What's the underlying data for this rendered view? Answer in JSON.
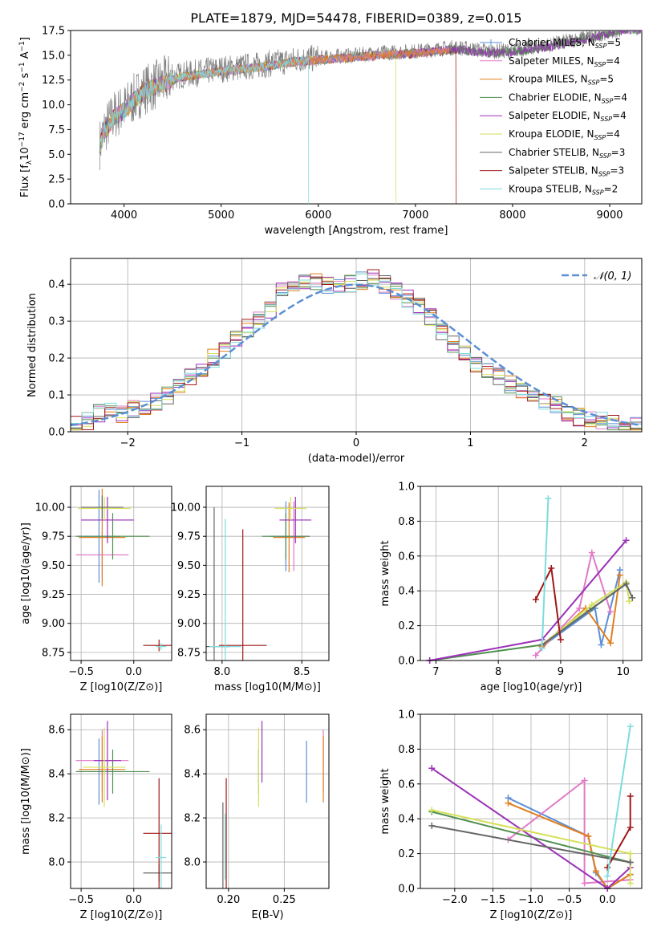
{
  "figure": {
    "title": "PLATE=1879, MJD=54478, FIBERID=0389, z=0.015"
  },
  "colors": {
    "Chabrier MILES": "#5b8fd6",
    "Salpeter MILES": "#e07ac8",
    "Kroupa MILES": "#e07f1f",
    "Chabrier ELODIE": "#4f8f4f",
    "Salpeter ELODIE": "#9b30b8",
    "Kroupa ELODIE": "#d6e05a",
    "Chabrier STELIB": "#666666",
    "Salpeter STELIB": "#a01818",
    "Kroupa STELIB": "#7fdcdc",
    "gaussian": "#5b8fd6"
  },
  "chart_data": [
    {
      "id": "spectrum",
      "type": "line",
      "title": "PLATE=1879, MJD=54478, FIBERID=0389, z=0.015",
      "xlabel": "wavelength [Angstrom, rest frame]",
      "ylabel": "Flux [f_λ10^-17 erg cm^-2 s^-1 A^-1]",
      "xlim": [
        3450,
        9330
      ],
      "ylim": [
        0,
        17.5
      ],
      "xticks": [
        "4000",
        "5000",
        "6000",
        "7000",
        "8000",
        "9000"
      ],
      "yticks": [
        "0.0",
        "2.5",
        "5.0",
        "7.5",
        "10.0",
        "12.5",
        "15.0",
        "17.5"
      ],
      "legend_position": "right",
      "legend": [
        {
          "name": "Chabrier MILES",
          "nssp": "5"
        },
        {
          "name": "Salpeter MILES",
          "nssp": "4"
        },
        {
          "name": "Kroupa MILES",
          "nssp": "5"
        },
        {
          "name": "Chabrier ELODIE",
          "nssp": "4"
        },
        {
          "name": "Salpeter ELODIE",
          "nssp": "4"
        },
        {
          "name": "Kroupa ELODIE",
          "nssp": "4"
        },
        {
          "name": "Chabrier STELIB",
          "nssp": "3"
        },
        {
          "name": "Salpeter STELIB",
          "nssp": "3"
        },
        {
          "name": "Kroupa STELIB",
          "nssp": "2"
        }
      ],
      "data_envelope": {
        "x": [
          3750,
          3800,
          3900,
          4000,
          4100,
          4200,
          4300,
          4400,
          4500,
          4600,
          4800,
          5000,
          5200,
          5400,
          5600,
          5800,
          6000,
          6200,
          6400,
          6600,
          6800,
          7000,
          7200,
          7400,
          7600,
          7800,
          8000,
          8200,
          8400,
          8600,
          8800,
          9000,
          9200
        ],
        "y": [
          6.0,
          7.5,
          9.0,
          9.6,
          10.6,
          11.5,
          11.9,
          12.3,
          12.8,
          13.0,
          13.3,
          13.6,
          13.8,
          14.0,
          14.3,
          14.6,
          14.7,
          14.9,
          15.0,
          15.2,
          15.3,
          15.4,
          15.6,
          15.8,
          15.6,
          15.4,
          15.5,
          15.8,
          16.1,
          16.5,
          16.9,
          17.4,
          17.8
        ]
      },
      "model_cutoffs": [
        {
          "series": "Kroupa STELIB",
          "x_end": 5900
        },
        {
          "series": "Kroupa ELODIE",
          "x_end": 6800
        },
        {
          "series": "Salpeter STELIB",
          "x_end": 7420
        }
      ]
    },
    {
      "id": "residuals",
      "type": "line",
      "xlabel": "(data-model)/error",
      "ylabel": "Normed distribution",
      "xlim": [
        -2.5,
        2.5
      ],
      "ylim": [
        0,
        0.47
      ],
      "xticks": [
        "−2",
        "−1",
        "0",
        "1",
        "2"
      ],
      "yticks": [
        "0.0",
        "0.1",
        "0.2",
        "0.3",
        "0.4"
      ],
      "legend_position": "top-right",
      "legend": [
        {
          "name": "𝒩(0, 1)"
        }
      ],
      "hist_bin_edges_start": -2.5,
      "hist_bin_width": 0.1,
      "hist_values": [
        0.02,
        0.03,
        0.05,
        0.06,
        0.05,
        0.06,
        0.07,
        0.08,
        0.1,
        0.12,
        0.15,
        0.17,
        0.2,
        0.22,
        0.25,
        0.28,
        0.3,
        0.33,
        0.38,
        0.4,
        0.4,
        0.41,
        0.4,
        0.39,
        0.4,
        0.41,
        0.42,
        0.4,
        0.38,
        0.36,
        0.34,
        0.31,
        0.27,
        0.24,
        0.21,
        0.18,
        0.17,
        0.15,
        0.13,
        0.11,
        0.09,
        0.08,
        0.07,
        0.05,
        0.04,
        0.03,
        0.03,
        0.02,
        0.02,
        0.02
      ]
    },
    {
      "id": "age_vs_Z",
      "type": "scatter",
      "xlabel": "Z [log10(Z/Z⊙)]",
      "ylabel": "age  [log10(age/yr)]",
      "xlim": [
        -0.6,
        0.36
      ],
      "ylim": [
        8.68,
        10.18
      ],
      "xticks": [
        {
          "v": -0.5,
          "t": "−0.5"
        },
        {
          "v": 0.0,
          "t": "0.0"
        }
      ],
      "yticks": [
        {
          "v": 8.75,
          "t": "8.75"
        },
        {
          "v": 9.0,
          "t": "9.00"
        },
        {
          "v": 9.25,
          "t": "9.25"
        },
        {
          "v": 9.5,
          "t": "9.50"
        },
        {
          "v": 9.75,
          "t": "9.75"
        },
        {
          "v": 10.0,
          "t": "10.00"
        }
      ],
      "points": [
        {
          "series": "Chabrier MILES",
          "x": -0.33,
          "y": 9.75,
          "xerr": 0.2,
          "yerr": 0.4
        },
        {
          "series": "Salpeter MILES",
          "x": -0.3,
          "y": 9.59,
          "xerr": 0.25,
          "yerr": 0.2
        },
        {
          "series": "Kroupa MILES",
          "x": -0.3,
          "y": 9.74,
          "xerr": 0.22,
          "yerr": 0.42
        },
        {
          "series": "Chabrier ELODIE",
          "x": -0.2,
          "y": 9.75,
          "xerr": 0.35,
          "yerr": 0.2
        },
        {
          "series": "Salpeter ELODIE",
          "x": -0.25,
          "y": 9.89,
          "xerr": 0.25,
          "yerr": 0.2
        },
        {
          "series": "Kroupa ELODIE",
          "x": -0.28,
          "y": 9.99,
          "xerr": 0.25,
          "yerr": 0.1
        },
        {
          "series": "Chabrier STELIB",
          "x": -0.3,
          "y": 10.0,
          "xerr": 0.2,
          "yerr": 0.1
        },
        {
          "series": "Salpeter STELIB",
          "x": 0.24,
          "y": 8.81,
          "xerr": 0.15,
          "yerr": 0.05
        },
        {
          "series": "Kroupa STELIB",
          "x": 0.26,
          "y": 8.8,
          "xerr": 0.05,
          "yerr": 0.03
        }
      ]
    },
    {
      "id": "age_vs_mass",
      "type": "scatter",
      "xlabel": "mass [log10(M/M⊙)]",
      "ylabel": "",
      "xlim": [
        7.9,
        8.67
      ],
      "ylim": [
        8.68,
        10.18
      ],
      "xticks": [
        {
          "v": 8.0,
          "t": "8.0"
        },
        {
          "v": 8.5,
          "t": "8.5"
        }
      ],
      "yticks": [
        {
          "v": 8.75,
          "t": "8.75"
        },
        {
          "v": 9.0,
          "t": "9.00"
        },
        {
          "v": 9.25,
          "t": "9.25"
        },
        {
          "v": 9.5,
          "t": "9.50"
        },
        {
          "v": 9.75,
          "t": "9.75"
        },
        {
          "v": 10.0,
          "t": "10.00"
        }
      ],
      "points": [
        {
          "series": "Chabrier MILES",
          "x": 8.4,
          "y": 9.75,
          "xerr": 0.1,
          "yerr": 0.3
        },
        {
          "series": "Salpeter MILES",
          "x": 8.45,
          "y": 9.75,
          "xerr": 0.1,
          "yerr": 0.3
        },
        {
          "series": "Kroupa MILES",
          "x": 8.42,
          "y": 9.74,
          "xerr": 0.1,
          "yerr": 0.3
        },
        {
          "series": "Chabrier ELODIE",
          "x": 8.4,
          "y": 9.75,
          "xerr": 0.15,
          "yerr": 0.2
        },
        {
          "series": "Salpeter ELODIE",
          "x": 8.46,
          "y": 9.89,
          "xerr": 0.1,
          "yerr": 0.2
        },
        {
          "series": "Kroupa ELODIE",
          "x": 8.43,
          "y": 9.99,
          "xerr": 0.1,
          "yerr": 0.1
        },
        {
          "series": "Chabrier STELIB",
          "x": 7.95,
          "y": 8.8,
          "xerr": 0.1,
          "yerr": 1.2
        },
        {
          "series": "Salpeter STELIB",
          "x": 8.13,
          "y": 8.81,
          "xerr": 0.15,
          "yerr": 1.0
        },
        {
          "series": "Kroupa STELIB",
          "x": 8.02,
          "y": 8.8,
          "xerr": 0.1,
          "yerr": 1.1
        }
      ]
    },
    {
      "id": "weight_vs_age",
      "type": "line",
      "xlabel": "age  [log10(age/yr)]",
      "ylabel": "mass weight",
      "xlim": [
        6.75,
        10.3
      ],
      "ylim": [
        0,
        1.0
      ],
      "xticks": [
        {
          "v": 7,
          "t": "7"
        },
        {
          "v": 8,
          "t": "8"
        },
        {
          "v": 9,
          "t": "9"
        },
        {
          "v": 10,
          "t": "10"
        }
      ],
      "yticks": [
        {
          "v": 0.0,
          "t": "0.0"
        },
        {
          "v": 0.2,
          "t": "0.2"
        },
        {
          "v": 0.4,
          "t": "0.4"
        },
        {
          "v": 0.6,
          "t": "0.6"
        },
        {
          "v": 0.8,
          "t": "0.8"
        },
        {
          "v": 1.0,
          "t": "1.0"
        }
      ],
      "series": [
        {
          "name": "Chabrier MILES",
          "x": [
            8.7,
            9.55,
            9.65,
            9.95
          ],
          "y": [
            0.08,
            0.3,
            0.09,
            0.52
          ]
        },
        {
          "name": "Salpeter MILES",
          "x": [
            8.6,
            9.3,
            9.5,
            9.8
          ],
          "y": [
            0.03,
            0.3,
            0.62,
            0.28
          ]
        },
        {
          "name": "Kroupa MILES",
          "x": [
            8.7,
            9.4,
            9.8,
            9.95
          ],
          "y": [
            0.08,
            0.3,
            0.1,
            0.49
          ]
        },
        {
          "name": "Chabrier ELODIE",
          "x": [
            6.9,
            8.7,
            9.5,
            10.05
          ],
          "y": [
            0.0,
            0.09,
            0.3,
            0.44
          ]
        },
        {
          "name": "Salpeter ELODIE",
          "x": [
            6.9,
            8.7,
            10.05
          ],
          "y": [
            0.0,
            0.12,
            0.69
          ]
        },
        {
          "name": "Kroupa ELODIE",
          "x": [
            8.7,
            9.5,
            10.05,
            10.1
          ],
          "y": [
            0.09,
            0.32,
            0.45,
            0.34
          ]
        },
        {
          "name": "Chabrier STELIB",
          "x": [
            8.7,
            10.05,
            10.15
          ],
          "y": [
            0.09,
            0.44,
            0.36
          ]
        },
        {
          "name": "Salpeter STELIB",
          "x": [
            8.6,
            8.85,
            9.0
          ],
          "y": [
            0.35,
            0.53,
            0.12
          ]
        },
        {
          "name": "Kroupa STELIB",
          "x": [
            8.7,
            8.8
          ],
          "y": [
            0.07,
            0.93
          ]
        }
      ]
    },
    {
      "id": "mass_vs_Z",
      "type": "scatter",
      "xlabel": "Z [log10(Z/Z⊙)]",
      "ylabel": "mass [log10(M/M⊙)]",
      "xlim": [
        -0.6,
        0.36
      ],
      "ylim": [
        7.88,
        8.67
      ],
      "xticks": [
        {
          "v": -0.5,
          "t": "−0.5"
        },
        {
          "v": 0.0,
          "t": "0.0"
        }
      ],
      "yticks": [
        {
          "v": 8.0,
          "t": "8.0"
        },
        {
          "v": 8.2,
          "t": "8.2"
        },
        {
          "v": 8.4,
          "t": "8.4"
        },
        {
          "v": 8.6,
          "t": "8.6"
        }
      ],
      "points": [
        {
          "series": "Chabrier MILES",
          "x": -0.33,
          "y": 8.41,
          "xerr": 0.2,
          "yerr": 0.15
        },
        {
          "series": "Salpeter MILES",
          "x": -0.3,
          "y": 8.46,
          "xerr": 0.25,
          "yerr": 0.14
        },
        {
          "series": "Kroupa MILES",
          "x": -0.3,
          "y": 8.42,
          "xerr": 0.22,
          "yerr": 0.15
        },
        {
          "series": "Chabrier ELODIE",
          "x": -0.2,
          "y": 8.41,
          "xerr": 0.35,
          "yerr": 0.1
        },
        {
          "series": "Salpeter ELODIE",
          "x": -0.25,
          "y": 8.46,
          "xerr": 0.13,
          "yerr": 0.18
        },
        {
          "series": "Kroupa ELODIE",
          "x": -0.28,
          "y": 8.43,
          "xerr": 0.2,
          "yerr": 0.18
        },
        {
          "series": "Chabrier STELIB",
          "x": 0.24,
          "y": 7.95,
          "xerr": 0.15,
          "yerr": 0.04
        },
        {
          "series": "Salpeter STELIB",
          "x": 0.24,
          "y": 8.13,
          "xerr": 0.15,
          "yerr": 0.25
        },
        {
          "series": "Kroupa STELIB",
          "x": 0.26,
          "y": 8.02,
          "xerr": 0.05,
          "yerr": 0.15
        }
      ]
    },
    {
      "id": "mass_vs_ebv",
      "type": "scatter",
      "xlabel": "E(B-V)",
      "ylabel": "",
      "xlim": [
        0.18,
        0.29
      ],
      "ylim": [
        7.88,
        8.67
      ],
      "xticks": [
        {
          "v": 0.2,
          "t": "0.20"
        },
        {
          "v": 0.25,
          "t": "0.25"
        }
      ],
      "yticks": [
        {
          "v": 8.0,
          "t": "8.0"
        },
        {
          "v": 8.2,
          "t": "8.2"
        },
        {
          "v": 8.4,
          "t": "8.4"
        },
        {
          "v": 8.6,
          "t": "8.6"
        }
      ],
      "points": [
        {
          "series": "Chabrier MILES",
          "x": 0.27,
          "y": 8.41,
          "xerr": 0.0,
          "yerr": 0.14
        },
        {
          "series": "Salpeter MILES",
          "x": 0.285,
          "y": 8.46,
          "xerr": 0.0,
          "yerr": 0.14
        },
        {
          "series": "Kroupa MILES",
          "x": 0.285,
          "y": 8.42,
          "xerr": 0.0,
          "yerr": 0.15
        },
        {
          "series": "Chabrier ELODIE",
          "x": 0.227,
          "y": 8.41,
          "xerr": 0.0,
          "yerr": 0.1
        },
        {
          "series": "Salpeter ELODIE",
          "x": 0.23,
          "y": 8.5,
          "xerr": 0.0,
          "yerr": 0.14
        },
        {
          "series": "Kroupa ELODIE",
          "x": 0.227,
          "y": 8.43,
          "xerr": 0.0,
          "yerr": 0.18
        },
        {
          "series": "Chabrier STELIB",
          "x": 0.195,
          "y": 8.04,
          "xerr": 0.0,
          "yerr": 0.23
        },
        {
          "series": "Salpeter STELIB",
          "x": 0.198,
          "y": 8.13,
          "xerr": 0.0,
          "yerr": 0.25
        },
        {
          "series": "Kroupa STELIB",
          "x": 0.197,
          "y": 8.07,
          "xerr": 0.0,
          "yerr": 0.15
        }
      ]
    },
    {
      "id": "weight_vs_Z",
      "type": "line",
      "xlabel": "Z [log10(Z/Z⊙)]",
      "ylabel": "mass weight",
      "xlim": [
        -2.45,
        0.45
      ],
      "ylim": [
        0,
        1.0
      ],
      "xticks": [
        {
          "v": -2.0,
          "t": "−2.0"
        },
        {
          "v": -1.5,
          "t": "−1.5"
        },
        {
          "v": -1.0,
          "t": "−1.0"
        },
        {
          "v": -0.5,
          "t": "−0.5"
        },
        {
          "v": 0.0,
          "t": "0.0"
        }
      ],
      "yticks": [
        {
          "v": 0.0,
          "t": "0.0"
        },
        {
          "v": 0.2,
          "t": "0.2"
        },
        {
          "v": 0.4,
          "t": "0.4"
        },
        {
          "v": 0.6,
          "t": "0.6"
        },
        {
          "v": 0.8,
          "t": "0.8"
        },
        {
          "v": 1.0,
          "t": "1.0"
        }
      ],
      "series": [
        {
          "name": "Chabrier MILES",
          "x": [
            -1.3,
            -0.25,
            -0.15,
            0.0,
            0.3
          ],
          "y": [
            0.52,
            0.3,
            0.09,
            0.0,
            0.08
          ]
        },
        {
          "name": "Salpeter MILES",
          "x": [
            -1.3,
            -0.3,
            -0.3,
            0.3
          ],
          "y": [
            0.28,
            0.62,
            0.03,
            0.05
          ]
        },
        {
          "name": "Kroupa MILES",
          "x": [
            -1.3,
            -0.25,
            -0.15,
            0.0,
            0.3
          ],
          "y": [
            0.49,
            0.3,
            0.1,
            0.0,
            0.08
          ]
        },
        {
          "name": "Chabrier ELODIE",
          "x": [
            -2.3,
            0.3
          ],
          "y": [
            0.44,
            0.15
          ]
        },
        {
          "name": "Salpeter ELODIE",
          "x": [
            -2.3,
            0.0,
            0.3
          ],
          "y": [
            0.69,
            0.0,
            0.12
          ]
        },
        {
          "name": "Kroupa ELODIE",
          "x": [
            -2.3,
            0.3,
            0.3
          ],
          "y": [
            0.45,
            0.2,
            0.03
          ]
        },
        {
          "name": "Chabrier STELIB",
          "x": [
            -2.3,
            0.3
          ],
          "y": [
            0.36,
            0.15
          ]
        },
        {
          "name": "Salpeter STELIB",
          "x": [
            0.0,
            0.3,
            0.3
          ],
          "y": [
            0.12,
            0.35,
            0.53
          ]
        },
        {
          "name": "Kroupa STELIB",
          "x": [
            0.0,
            0.3
          ],
          "y": [
            0.07,
            0.93
          ]
        }
      ]
    }
  ]
}
